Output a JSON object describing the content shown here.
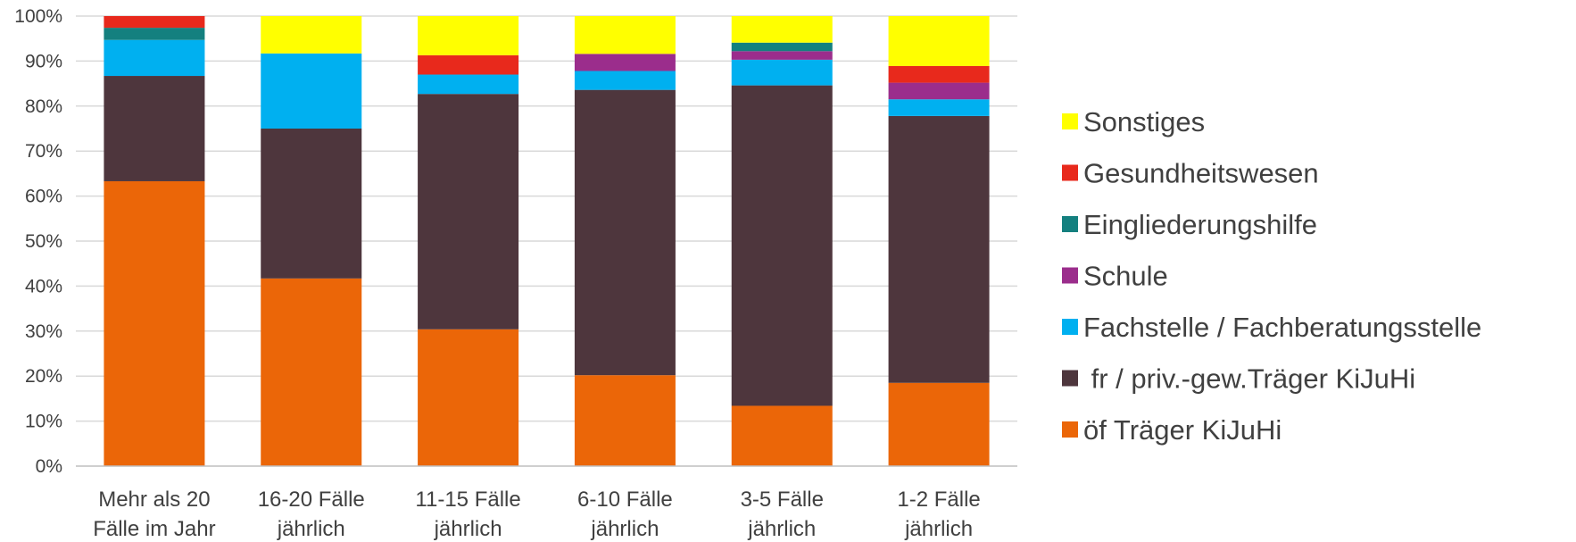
{
  "chart_data": {
    "type": "bar",
    "stacked": true,
    "percent": true,
    "ylim": [
      0,
      100
    ],
    "yticks": [
      "0%",
      "10%",
      "20%",
      "30%",
      "40%",
      "50%",
      "60%",
      "70%",
      "80%",
      "90%",
      "100%"
    ],
    "grid": true,
    "legend_position": "right",
    "categories": [
      [
        "Mehr als 20",
        "Fälle im Jahr"
      ],
      [
        "16-20 Fälle",
        "jährlich"
      ],
      [
        "11-15 Fälle",
        "jährlich"
      ],
      [
        "6-10 Fälle",
        "jährlich"
      ],
      [
        "3-5 Fälle",
        "jährlich"
      ],
      [
        "1-2 Fälle",
        "jährlich"
      ]
    ],
    "series": [
      {
        "name": "öf Träger KiJuHi",
        "color": "#EB6608",
        "values": [
          63.3,
          41.7,
          30.4,
          20.2,
          13.4,
          18.5
        ]
      },
      {
        "name": " fr / priv.-gew.Träger KiJuHi",
        "color": "#4E363D",
        "values": [
          23.4,
          33.3,
          52.3,
          63.4,
          71.2,
          59.3
        ]
      },
      {
        "name": "Fachstelle / Fachberatungsstelle",
        "color": "#00B0F0",
        "values": [
          8.0,
          16.7,
          4.3,
          4.2,
          5.7,
          3.7
        ]
      },
      {
        "name": "Schule",
        "color": "#9B2D8C",
        "values": [
          0,
          0,
          0,
          3.8,
          1.9,
          3.7
        ]
      },
      {
        "name": "Eingliederungshilfe",
        "color": "#14807F",
        "values": [
          2.7,
          0,
          0,
          0,
          1.9,
          0
        ]
      },
      {
        "name": "Gesundheitswesen",
        "color": "#E8291C",
        "values": [
          2.6,
          0,
          4.3,
          0,
          0,
          3.7
        ]
      },
      {
        "name": "Sonstiges",
        "color": "#FFFF00",
        "values": [
          0,
          8.3,
          8.7,
          8.4,
          5.9,
          11.1
        ]
      }
    ]
  }
}
